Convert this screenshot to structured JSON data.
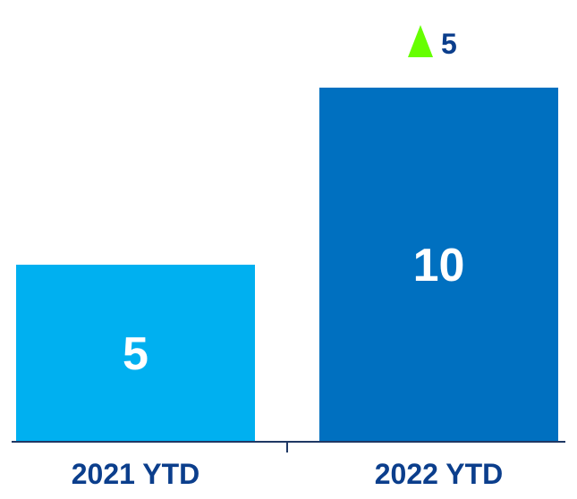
{
  "chart_data": {
    "type": "bar",
    "categories": [
      "2021 YTD",
      "2022 YTD"
    ],
    "values": [
      5,
      10
    ],
    "value_labels": [
      "5",
      "10"
    ],
    "title": "",
    "xlabel": "",
    "ylabel": "",
    "ylim": [
      0,
      10
    ],
    "grid": false,
    "legend": "none",
    "change": {
      "direction": "up",
      "label": "5",
      "icon": "triangle-up-icon"
    },
    "colors": {
      "bars": [
        "#00b0f0",
        "#0070c0"
      ],
      "category_text": "#0b3e8c",
      "change_text": "#0b3e8c",
      "change_icon": "#66ff00",
      "axis": "#1f3864",
      "value_text": "#ffffff"
    }
  }
}
